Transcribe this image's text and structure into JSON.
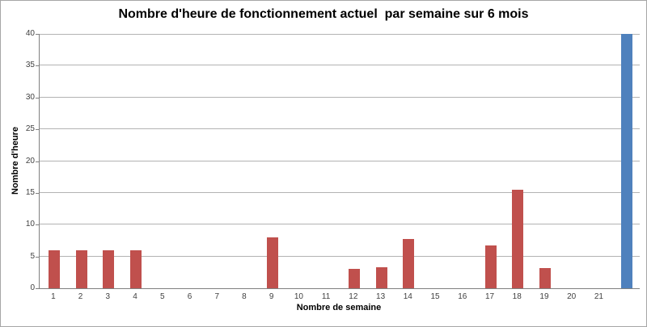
{
  "chart_data": {
    "type": "bar",
    "title": "Nombre d'heure de fonctionnement actuel  par semaine sur 6 mois",
    "xlabel": "Nombre de semaine",
    "ylabel": "Nombre d'heure",
    "ylim": [
      0,
      40
    ],
    "yticks": [
      0,
      5,
      10,
      15,
      20,
      25,
      30,
      35,
      40
    ],
    "grid": "horizontal",
    "legend": "none",
    "categories": [
      "1",
      "2",
      "3",
      "4",
      "5",
      "6",
      "7",
      "8",
      "9",
      "10",
      "11",
      "12",
      "13",
      "14",
      "15",
      "16",
      "17",
      "18",
      "19",
      "20",
      "21",
      ""
    ],
    "series": [
      {
        "name": "heures-actuelles-rouge",
        "color": "#C0504D",
        "values": [
          6,
          6,
          6,
          6,
          null,
          null,
          null,
          null,
          8,
          null,
          null,
          3,
          3.3,
          7.7,
          null,
          null,
          6.7,
          15.5,
          3.2,
          null,
          null,
          null
        ]
      },
      {
        "name": "barre-bleue",
        "color": "#4F81BD",
        "values": [
          null,
          null,
          null,
          null,
          null,
          null,
          null,
          null,
          null,
          null,
          null,
          null,
          null,
          null,
          null,
          null,
          null,
          null,
          null,
          null,
          null,
          40
        ]
      }
    ],
    "colors": {
      "grid": "#B3B3B3",
      "axis": "#808080",
      "tick_text": "#404040",
      "title_text": "#000000",
      "border": "#A6A6A6",
      "background": "#FFFFFF"
    }
  }
}
